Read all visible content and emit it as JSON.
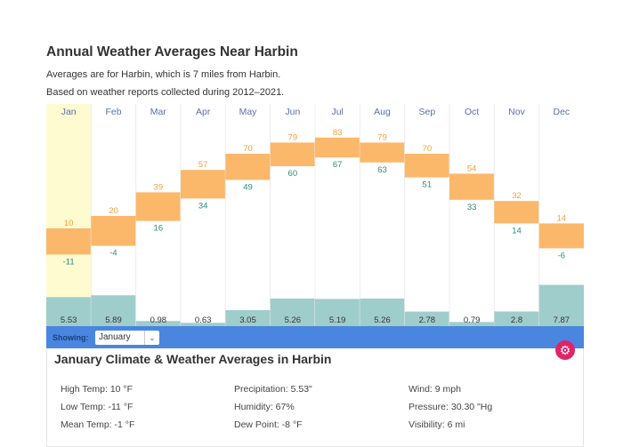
{
  "header": {
    "title": "Annual Weather Averages Near Harbin",
    "line1": "Averages are for Harbin, which is 7 miles from Harbin.",
    "line2": "Based on weather reports collected during 2012–2021."
  },
  "chart_data": {
    "type": "bar",
    "categories": [
      "Jan",
      "Feb",
      "Mar",
      "Apr",
      "May",
      "Jun",
      "Jul",
      "Aug",
      "Sep",
      "Oct",
      "Nov",
      "Dec"
    ],
    "series": [
      {
        "name": "High",
        "values": [
          10,
          20,
          39,
          57,
          70,
          79,
          83,
          79,
          70,
          54,
          32,
          14
        ]
      },
      {
        "name": "Low",
        "values": [
          -11,
          -4,
          16,
          34,
          49,
          60,
          67,
          63,
          51,
          33,
          14,
          -6
        ]
      },
      {
        "name": "Precipitation",
        "values": [
          5.53,
          5.89,
          0.98,
          0.63,
          3.05,
          5.26,
          5.19,
          5.26,
          2.78,
          0.79,
          2.8,
          7.87
        ]
      }
    ],
    "highlighted": "Jan",
    "colors": {
      "temp_band": "#fbb86a",
      "high_label": "#f0a040",
      "low_label": "#2a8c7a",
      "precip": "#9fcdcb",
      "highlight": "#fffbd0",
      "month_label": "#5a6fb0"
    }
  },
  "controls": {
    "showing_label": "Showing:",
    "selected": "January"
  },
  "detail": {
    "title": "January Climate & Weather Averages in Harbin",
    "stats": [
      "High Temp: 10 °F",
      "Low Temp: -11 °F",
      "Mean Temp: -1 °F",
      "Precipitation: 5.53\"",
      "Humidity: 67%",
      "Dew Point: -8 °F",
      "Wind: 9 mph",
      "Pressure: 30.30 \"Hg",
      "Visibility: 6 mi"
    ]
  }
}
